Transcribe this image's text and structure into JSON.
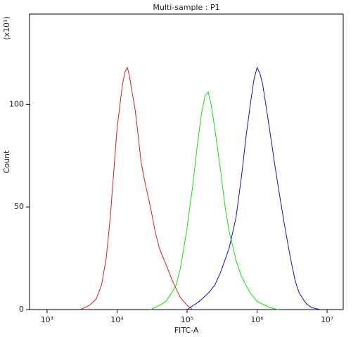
{
  "chart_data": {
    "type": "line",
    "title": "Multi-sample : P1",
    "x_label": "FITC-A",
    "y_label": "Count",
    "y_multiplier": "(x10¹)",
    "xscale": "log",
    "xlim": [
      562,
      17000000
    ],
    "ylim": [
      0,
      144
    ],
    "xticks": [
      {
        "value": 1000,
        "label": "10³"
      },
      {
        "value": 10000,
        "label": "10⁴"
      },
      {
        "value": 100000,
        "label": "10⁵"
      },
      {
        "value": 1000000,
        "label": "10⁶"
      },
      {
        "value": 10000000,
        "label": "10⁷"
      }
    ],
    "yticks": [
      0,
      50,
      100
    ],
    "series": [
      {
        "color": "#d42020",
        "x": [
          3000,
          4000,
          5000,
          6000,
          7000,
          8000,
          9000,
          10000,
          11000,
          12000,
          13000,
          14000,
          15000,
          16000,
          18000,
          20000,
          22000,
          25000,
          30000,
          35000,
          40000,
          50000,
          60000,
          70000,
          80000,
          100000,
          120000
        ],
        "values": [
          0,
          2,
          5,
          12,
          25,
          45,
          68,
          88,
          100,
          110,
          116,
          118,
          114,
          108,
          98,
          85,
          72,
          62,
          50,
          38,
          30,
          22,
          15,
          10,
          6,
          2,
          0
        ]
      },
      {
        "color": "#10e010",
        "x": [
          30000,
          40000,
          50000,
          60000,
          70000,
          80000,
          90000,
          100000,
          120000,
          140000,
          160000,
          180000,
          200000,
          220000,
          250000,
          300000,
          350000,
          400000,
          500000,
          600000,
          800000,
          1000000,
          1500000,
          2000000
        ],
        "values": [
          0,
          2,
          4,
          8,
          12,
          20,
          30,
          40,
          60,
          80,
          95,
          104,
          106,
          100,
          88,
          68,
          50,
          38,
          24,
          16,
          8,
          4,
          1,
          0
        ]
      },
      {
        "color": "#1010c8",
        "x": [
          100000,
          150000,
          200000,
          250000,
          300000,
          400000,
          500000,
          600000,
          700000,
          800000,
          900000,
          1000000,
          1100000,
          1200000,
          1400000,
          1600000,
          1800000,
          2000000,
          2500000,
          3000000,
          3500000,
          4000000,
          5000000,
          6000000,
          8000000
        ],
        "values": [
          0,
          4,
          8,
          12,
          18,
          30,
          45,
          65,
          85,
          100,
          112,
          118,
          115,
          110,
          95,
          82,
          70,
          60,
          40,
          25,
          14,
          8,
          3,
          1,
          0
        ]
      }
    ]
  }
}
